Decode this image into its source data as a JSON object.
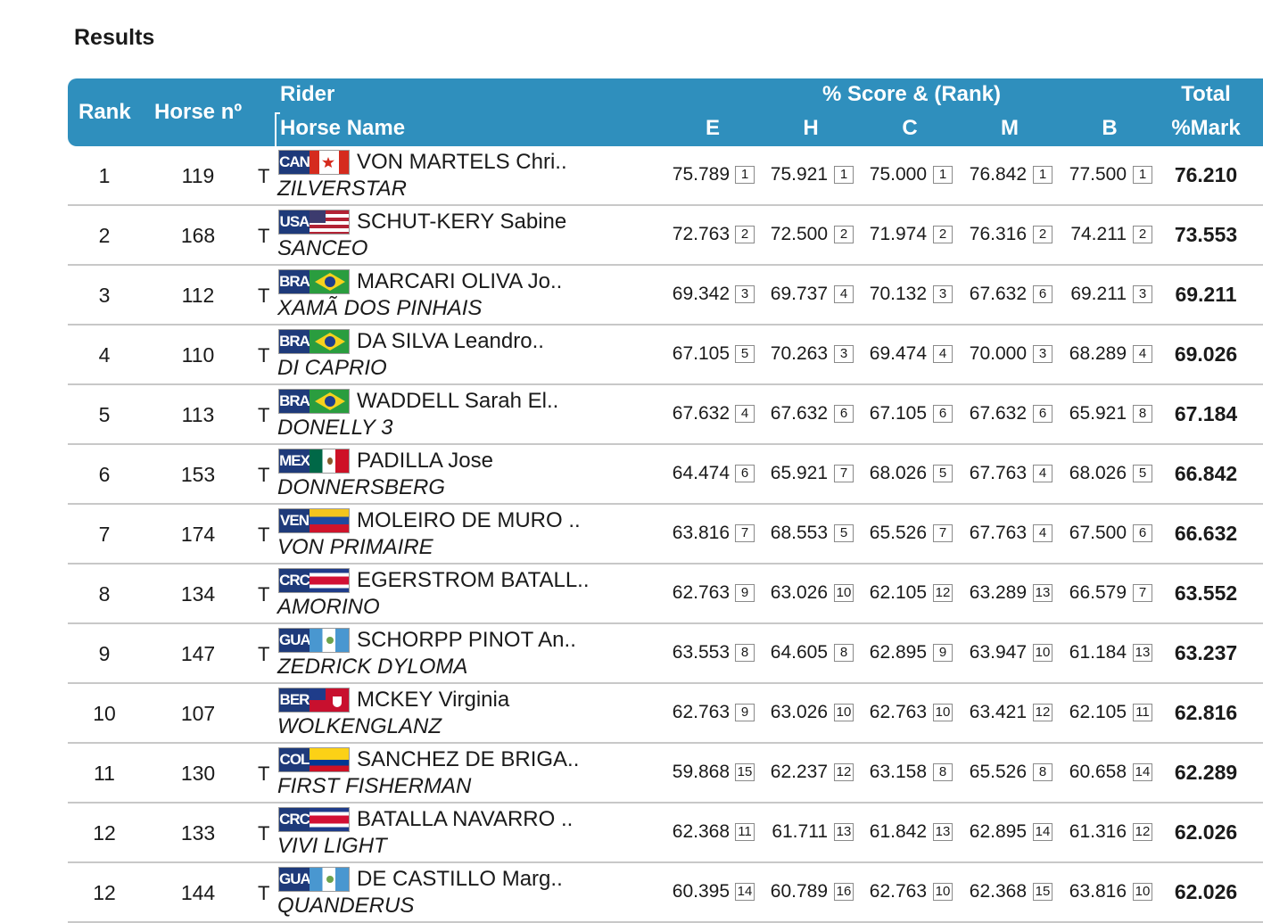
{
  "page": {
    "title": "Results"
  },
  "header": {
    "rank": "Rank",
    "horse_no": "Horse nº",
    "rider": "Rider",
    "horse_name": "Horse Name",
    "score_group": "% Score & (Rank)",
    "judges": [
      "E",
      "H",
      "C",
      "M",
      "B"
    ],
    "total_line1": "Total",
    "total_line2": "%Mark"
  },
  "colors": {
    "header_bg": "#2f8fbd",
    "row_divider": "#c8c8c8"
  },
  "rows": [
    {
      "rank": "1",
      "horse_no": "119",
      "t": "T",
      "nation": "CAN",
      "rider": "VON MARTELS Chri..",
      "horse": "ZILVERSTAR",
      "scores": [
        {
          "v": "75.789",
          "r": "1"
        },
        {
          "v": "75.921",
          "r": "1"
        },
        {
          "v": "75.000",
          "r": "1"
        },
        {
          "v": "76.842",
          "r": "1"
        },
        {
          "v": "77.500",
          "r": "1"
        }
      ],
      "total": "76.210"
    },
    {
      "rank": "2",
      "horse_no": "168",
      "t": "T",
      "nation": "USA",
      "rider": "SCHUT-KERY Sabine",
      "horse": "SANCEO",
      "scores": [
        {
          "v": "72.763",
          "r": "2"
        },
        {
          "v": "72.500",
          "r": "2"
        },
        {
          "v": "71.974",
          "r": "2"
        },
        {
          "v": "76.316",
          "r": "2"
        },
        {
          "v": "74.211",
          "r": "2"
        }
      ],
      "total": "73.553"
    },
    {
      "rank": "3",
      "horse_no": "112",
      "t": "T",
      "nation": "BRA",
      "rider": "MARCARI OLIVA Jo..",
      "horse": "XAMÃ DOS PINHAIS",
      "scores": [
        {
          "v": "69.342",
          "r": "3"
        },
        {
          "v": "69.737",
          "r": "4"
        },
        {
          "v": "70.132",
          "r": "3"
        },
        {
          "v": "67.632",
          "r": "6"
        },
        {
          "v": "69.211",
          "r": "3"
        }
      ],
      "total": "69.211"
    },
    {
      "rank": "4",
      "horse_no": "110",
      "t": "T",
      "nation": "BRA",
      "rider": "DA SILVA Leandro..",
      "horse": "DI CAPRIO",
      "scores": [
        {
          "v": "67.105",
          "r": "5"
        },
        {
          "v": "70.263",
          "r": "3"
        },
        {
          "v": "69.474",
          "r": "4"
        },
        {
          "v": "70.000",
          "r": "3"
        },
        {
          "v": "68.289",
          "r": "4"
        }
      ],
      "total": "69.026"
    },
    {
      "rank": "5",
      "horse_no": "113",
      "t": "T",
      "nation": "BRA",
      "rider": "WADDELL Sarah El..",
      "horse": "DONELLY 3",
      "scores": [
        {
          "v": "67.632",
          "r": "4"
        },
        {
          "v": "67.632",
          "r": "6"
        },
        {
          "v": "67.105",
          "r": "6"
        },
        {
          "v": "67.632",
          "r": "6"
        },
        {
          "v": "65.921",
          "r": "8"
        }
      ],
      "total": "67.184"
    },
    {
      "rank": "6",
      "horse_no": "153",
      "t": "T",
      "nation": "MEX",
      "rider": "PADILLA Jose",
      "horse": "DONNERSBERG",
      "scores": [
        {
          "v": "64.474",
          "r": "6"
        },
        {
          "v": "65.921",
          "r": "7"
        },
        {
          "v": "68.026",
          "r": "5"
        },
        {
          "v": "67.763",
          "r": "4"
        },
        {
          "v": "68.026",
          "r": "5"
        }
      ],
      "total": "66.842"
    },
    {
      "rank": "7",
      "horse_no": "174",
      "t": "T",
      "nation": "VEN",
      "rider": "MOLEIRO DE MURO ..",
      "horse": "VON PRIMAIRE",
      "scores": [
        {
          "v": "63.816",
          "r": "7"
        },
        {
          "v": "68.553",
          "r": "5"
        },
        {
          "v": "65.526",
          "r": "7"
        },
        {
          "v": "67.763",
          "r": "4"
        },
        {
          "v": "67.500",
          "r": "6"
        }
      ],
      "total": "66.632"
    },
    {
      "rank": "8",
      "horse_no": "134",
      "t": "T",
      "nation": "CRC",
      "rider": "EGERSTROM BATALL..",
      "horse": "AMORINO",
      "scores": [
        {
          "v": "62.763",
          "r": "9"
        },
        {
          "v": "63.026",
          "r": "10"
        },
        {
          "v": "62.105",
          "r": "12"
        },
        {
          "v": "63.289",
          "r": "13"
        },
        {
          "v": "66.579",
          "r": "7"
        }
      ],
      "total": "63.552"
    },
    {
      "rank": "9",
      "horse_no": "147",
      "t": "T",
      "nation": "GUA",
      "rider": "SCHORPP PINOT An..",
      "horse": "ZEDRICK DYLOMA",
      "scores": [
        {
          "v": "63.553",
          "r": "8"
        },
        {
          "v": "64.605",
          "r": "8"
        },
        {
          "v": "62.895",
          "r": "9"
        },
        {
          "v": "63.947",
          "r": "10"
        },
        {
          "v": "61.184",
          "r": "13"
        }
      ],
      "total": "63.237"
    },
    {
      "rank": "10",
      "horse_no": "107",
      "t": "",
      "nation": "BER",
      "rider": "MCKEY Virginia",
      "horse": "WOLKENGLANZ",
      "scores": [
        {
          "v": "62.763",
          "r": "9"
        },
        {
          "v": "63.026",
          "r": "10"
        },
        {
          "v": "62.763",
          "r": "10"
        },
        {
          "v": "63.421",
          "r": "12"
        },
        {
          "v": "62.105",
          "r": "11"
        }
      ],
      "total": "62.816"
    },
    {
      "rank": "11",
      "horse_no": "130",
      "t": "T",
      "nation": "COL",
      "rider": "SANCHEZ DE BRIGA..",
      "horse": "FIRST FISHERMAN",
      "scores": [
        {
          "v": "59.868",
          "r": "15"
        },
        {
          "v": "62.237",
          "r": "12"
        },
        {
          "v": "63.158",
          "r": "8"
        },
        {
          "v": "65.526",
          "r": "8"
        },
        {
          "v": "60.658",
          "r": "14"
        }
      ],
      "total": "62.289"
    },
    {
      "rank": "12",
      "horse_no": "133",
      "t": "T",
      "nation": "CRC",
      "rider": "BATALLA NAVARRO ..",
      "horse": "VIVI LIGHT",
      "scores": [
        {
          "v": "62.368",
          "r": "11"
        },
        {
          "v": "61.711",
          "r": "13"
        },
        {
          "v": "61.842",
          "r": "13"
        },
        {
          "v": "62.895",
          "r": "14"
        },
        {
          "v": "61.316",
          "r": "12"
        }
      ],
      "total": "62.026"
    },
    {
      "rank": "12",
      "horse_no": "144",
      "t": "T",
      "nation": "GUA",
      "rider": "DE CASTILLO Marg..",
      "horse": "QUANDERUS",
      "scores": [
        {
          "v": "60.395",
          "r": "14"
        },
        {
          "v": "60.789",
          "r": "16"
        },
        {
          "v": "62.763",
          "r": "10"
        },
        {
          "v": "62.368",
          "r": "15"
        },
        {
          "v": "63.816",
          "r": "10"
        }
      ],
      "total": "62.026"
    }
  ]
}
